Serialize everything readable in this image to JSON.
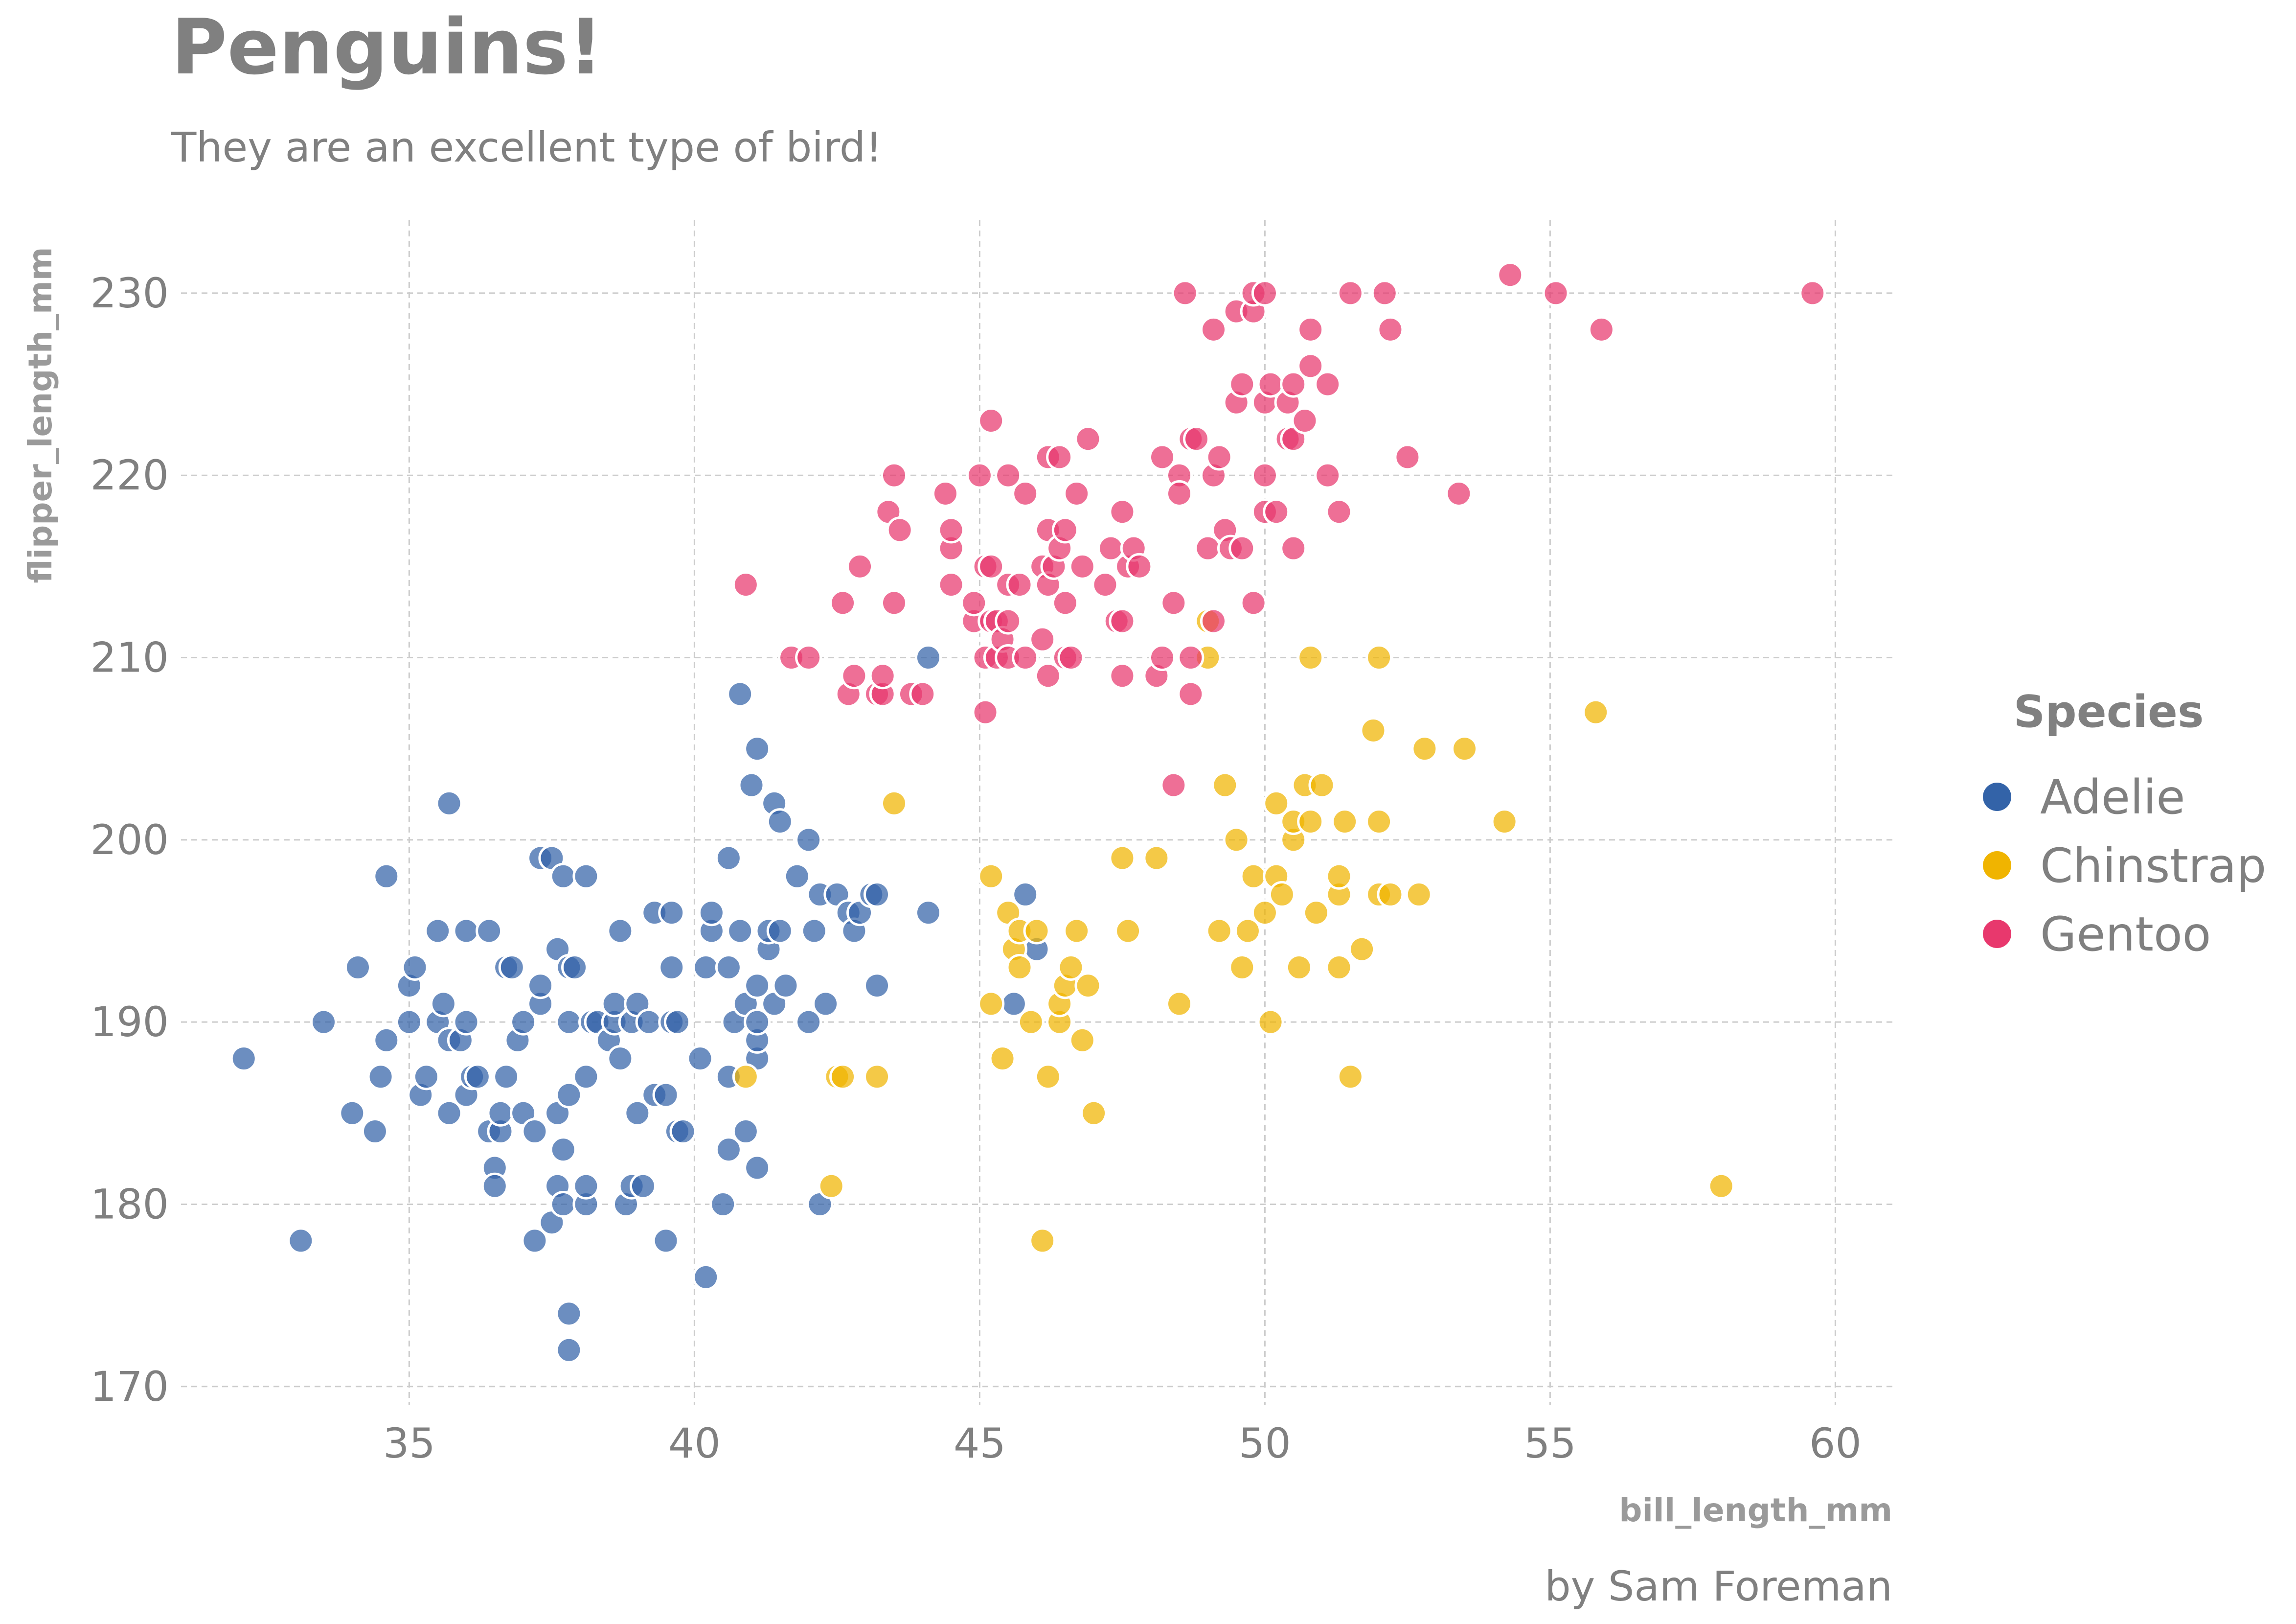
{
  "chart_data": {
    "type": "scatter",
    "title": "Penguins!",
    "subtitle": "They are an excellent type of bird!",
    "caption": "by Sam Foreman",
    "xlabel": "bill_length_mm",
    "ylabel": "flipper_length_mm",
    "xlim": [
      31,
      61
    ],
    "ylim": [
      169,
      234
    ],
    "xticks": [
      "35",
      "40",
      "45",
      "50",
      "55",
      "60"
    ],
    "yticks": [
      "170",
      "180",
      "190",
      "200",
      "210",
      "220",
      "230"
    ],
    "grid": true,
    "legend": {
      "title": "Species",
      "position": "right"
    },
    "series": [
      {
        "name": "Adelie",
        "color": "#3363a8",
        "points": [
          [
            32.1,
            188
          ],
          [
            33.1,
            178
          ],
          [
            33.5,
            190
          ],
          [
            34,
            185
          ],
          [
            34.1,
            193
          ],
          [
            34.4,
            184
          ],
          [
            34.5,
            187
          ],
          [
            34.6,
            189
          ],
          [
            34.6,
            198
          ],
          [
            35,
            190
          ],
          [
            35,
            192
          ],
          [
            35.1,
            193
          ],
          [
            35.2,
            186
          ],
          [
            35.3,
            187
          ],
          [
            35.5,
            190
          ],
          [
            35.5,
            195
          ],
          [
            35.6,
            191
          ],
          [
            35.7,
            185
          ],
          [
            35.7,
            189
          ],
          [
            35.7,
            202
          ],
          [
            35.9,
            189
          ],
          [
            36,
            186
          ],
          [
            36,
            190
          ],
          [
            36,
            195
          ],
          [
            36.1,
            187
          ],
          [
            36.2,
            187
          ],
          [
            36.4,
            184
          ],
          [
            36.4,
            195
          ],
          [
            36.5,
            182
          ],
          [
            36.5,
            181
          ],
          [
            36.6,
            184
          ],
          [
            36.6,
            185
          ],
          [
            36.7,
            187
          ],
          [
            36.7,
            193
          ],
          [
            36.8,
            193
          ],
          [
            36.9,
            189
          ],
          [
            37,
            185
          ],
          [
            37,
            190
          ],
          [
            37.2,
            178
          ],
          [
            37.2,
            184
          ],
          [
            37.3,
            191
          ],
          [
            37.3,
            192
          ],
          [
            37.3,
            199
          ],
          [
            37.5,
            179
          ],
          [
            37.5,
            199
          ],
          [
            37.6,
            181
          ],
          [
            37.6,
            185
          ],
          [
            37.6,
            194
          ],
          [
            37.7,
            183
          ],
          [
            37.7,
            180
          ],
          [
            37.7,
            198
          ],
          [
            37.8,
            174
          ],
          [
            37.8,
            172
          ],
          [
            37.8,
            186
          ],
          [
            37.8,
            190
          ],
          [
            37.8,
            193
          ],
          [
            37.9,
            193
          ],
          [
            38.1,
            180
          ],
          [
            38.1,
            181
          ],
          [
            38.1,
            187
          ],
          [
            38.1,
            198
          ],
          [
            38.2,
            190
          ],
          [
            38.3,
            190
          ],
          [
            38.5,
            189
          ],
          [
            38.6,
            190
          ],
          [
            38.6,
            191
          ],
          [
            38.7,
            188
          ],
          [
            38.7,
            195
          ],
          [
            38.8,
            180
          ],
          [
            38.9,
            181
          ],
          [
            38.9,
            190
          ],
          [
            39,
            185
          ],
          [
            39,
            191
          ],
          [
            39.1,
            181
          ],
          [
            39.2,
            190
          ],
          [
            39.3,
            186
          ],
          [
            39.3,
            196
          ],
          [
            39.5,
            178
          ],
          [
            39.5,
            186
          ],
          [
            39.6,
            190
          ],
          [
            39.6,
            193
          ],
          [
            39.6,
            196
          ],
          [
            39.7,
            184
          ],
          [
            39.7,
            190
          ],
          [
            39.8,
            184
          ],
          [
            40.1,
            188
          ],
          [
            40.2,
            176
          ],
          [
            40.2,
            193
          ],
          [
            40.3,
            195
          ],
          [
            40.3,
            196
          ],
          [
            40.5,
            180
          ],
          [
            40.6,
            183
          ],
          [
            40.6,
            187
          ],
          [
            40.6,
            193
          ],
          [
            40.6,
            199
          ],
          [
            40.7,
            190
          ],
          [
            40.8,
            195
          ],
          [
            40.9,
            184
          ],
          [
            40.9,
            191
          ],
          [
            41.1,
            182
          ],
          [
            41.1,
            188
          ],
          [
            41.1,
            189
          ],
          [
            41.1,
            190
          ],
          [
            41.1,
            192
          ],
          [
            41.1,
            205
          ],
          [
            41.3,
            194
          ],
          [
            41.3,
            195
          ],
          [
            41.4,
            191
          ],
          [
            41.4,
            202
          ],
          [
            41.5,
            195
          ],
          [
            41.5,
            201
          ],
          [
            41.6,
            192
          ],
          [
            41.8,
            198
          ],
          [
            42,
            190
          ],
          [
            42,
            200
          ],
          [
            42.1,
            195
          ],
          [
            42.2,
            180
          ],
          [
            42.2,
            197
          ],
          [
            42.3,
            191
          ],
          [
            42.5,
            197
          ],
          [
            42.7,
            196
          ],
          [
            42.8,
            195
          ],
          [
            42.9,
            196
          ],
          [
            43.1,
            197
          ],
          [
            43.2,
            192
          ],
          [
            43.2,
            197
          ],
          [
            44.1,
            196
          ],
          [
            44.1,
            210
          ],
          [
            45.6,
            191
          ],
          [
            45.8,
            197
          ],
          [
            46,
            194
          ],
          [
            40.8,
            208
          ],
          [
            41,
            203
          ]
        ]
      },
      {
        "name": "Chinstrap",
        "color": "#f0b400",
        "points": [
          [
            40.9,
            187
          ],
          [
            42.4,
            181
          ],
          [
            42.5,
            187
          ],
          [
            42.6,
            187
          ],
          [
            43.2,
            187
          ],
          [
            43.5,
            202
          ],
          [
            45.2,
            191
          ],
          [
            45.2,
            198
          ],
          [
            45.4,
            188
          ],
          [
            45.5,
            196
          ],
          [
            45.6,
            194
          ],
          [
            45.7,
            195
          ],
          [
            45.7,
            193
          ],
          [
            45.9,
            190
          ],
          [
            46,
            195
          ],
          [
            46.1,
            178
          ],
          [
            46.2,
            187
          ],
          [
            46.4,
            190
          ],
          [
            46.4,
            191
          ],
          [
            46.5,
            192
          ],
          [
            46.6,
            193
          ],
          [
            46.7,
            195
          ],
          [
            46.8,
            189
          ],
          [
            46.9,
            192
          ],
          [
            47,
            185
          ],
          [
            47.5,
            199
          ],
          [
            47.6,
            195
          ],
          [
            48.1,
            199
          ],
          [
            48.5,
            191
          ],
          [
            49,
            210
          ],
          [
            49,
            212
          ],
          [
            49.2,
            195
          ],
          [
            49.3,
            203
          ],
          [
            49.5,
            200
          ],
          [
            49.6,
            193
          ],
          [
            49.7,
            195
          ],
          [
            49.8,
            198
          ],
          [
            50,
            196
          ],
          [
            50.1,
            190
          ],
          [
            50.2,
            198
          ],
          [
            50.2,
            202
          ],
          [
            50.3,
            197
          ],
          [
            50.5,
            200
          ],
          [
            50.5,
            201
          ],
          [
            50.6,
            193
          ],
          [
            50.7,
            203
          ],
          [
            50.8,
            210
          ],
          [
            50.8,
            201
          ],
          [
            50.9,
            196
          ],
          [
            51,
            203
          ],
          [
            51.3,
            193
          ],
          [
            51.3,
            197
          ],
          [
            51.3,
            198
          ],
          [
            51.4,
            201
          ],
          [
            51.5,
            187
          ],
          [
            51.7,
            194
          ],
          [
            51.9,
            206
          ],
          [
            52,
            197
          ],
          [
            52,
            201
          ],
          [
            52,
            210
          ],
          [
            52.2,
            197
          ],
          [
            52.7,
            197
          ],
          [
            52.8,
            205
          ],
          [
            53.5,
            205
          ],
          [
            54.2,
            201
          ],
          [
            55.8,
            207
          ],
          [
            58,
            181
          ]
        ]
      },
      {
        "name": "Gentoo",
        "color": "#e8386d",
        "points": [
          [
            40.9,
            214
          ],
          [
            41.7,
            210
          ],
          [
            42,
            210
          ],
          [
            42.6,
            213
          ],
          [
            42.7,
            208
          ],
          [
            42.8,
            209
          ],
          [
            42.9,
            215
          ],
          [
            43.2,
            208
          ],
          [
            43.3,
            208
          ],
          [
            43.3,
            209
          ],
          [
            43.4,
            218
          ],
          [
            43.5,
            213
          ],
          [
            43.5,
            220
          ],
          [
            43.6,
            217
          ],
          [
            43.8,
            208
          ],
          [
            44,
            208
          ],
          [
            44.4,
            219
          ],
          [
            44.5,
            214
          ],
          [
            44.5,
            216
          ],
          [
            44.5,
            217
          ],
          [
            44.9,
            212
          ],
          [
            44.9,
            213
          ],
          [
            45,
            220
          ],
          [
            45.1,
            207
          ],
          [
            45.1,
            210
          ],
          [
            45.1,
            215
          ],
          [
            45.2,
            212
          ],
          [
            45.2,
            215
          ],
          [
            45.2,
            223
          ],
          [
            45.3,
            210
          ],
          [
            45.3,
            212
          ],
          [
            45.4,
            211
          ],
          [
            45.5,
            210
          ],
          [
            45.5,
            212
          ],
          [
            45.5,
            214
          ],
          [
            45.5,
            220
          ],
          [
            45.7,
            214
          ],
          [
            45.8,
            210
          ],
          [
            45.8,
            219
          ],
          [
            46.1,
            211
          ],
          [
            46.1,
            215
          ],
          [
            46.2,
            209
          ],
          [
            46.2,
            214
          ],
          [
            46.2,
            217
          ],
          [
            46.2,
            221
          ],
          [
            46.3,
            215
          ],
          [
            46.4,
            216
          ],
          [
            46.4,
            221
          ],
          [
            46.5,
            210
          ],
          [
            46.5,
            213
          ],
          [
            46.5,
            217
          ],
          [
            46.6,
            210
          ],
          [
            46.7,
            219
          ],
          [
            46.8,
            215
          ],
          [
            46.9,
            222
          ],
          [
            47.2,
            214
          ],
          [
            47.3,
            216
          ],
          [
            47.4,
            212
          ],
          [
            47.5,
            209
          ],
          [
            47.5,
            212
          ],
          [
            47.5,
            218
          ],
          [
            47.6,
            215
          ],
          [
            47.7,
            216
          ],
          [
            47.8,
            215
          ],
          [
            48.1,
            209
          ],
          [
            48.2,
            210
          ],
          [
            48.2,
            221
          ],
          [
            48.4,
            213
          ],
          [
            48.4,
            203
          ],
          [
            48.5,
            220
          ],
          [
            48.5,
            219
          ],
          [
            48.6,
            230
          ],
          [
            48.7,
            208
          ],
          [
            48.7,
            210
          ],
          [
            48.7,
            222
          ],
          [
            48.8,
            222
          ],
          [
            49,
            216
          ],
          [
            49.1,
            212
          ],
          [
            49.1,
            220
          ],
          [
            49.1,
            228
          ],
          [
            49.2,
            221
          ],
          [
            49.3,
            217
          ],
          [
            49.4,
            216
          ],
          [
            49.5,
            224
          ],
          [
            49.5,
            229
          ],
          [
            49.6,
            216
          ],
          [
            49.6,
            225
          ],
          [
            49.8,
            213
          ],
          [
            49.8,
            229
          ],
          [
            49.8,
            230
          ],
          [
            50,
            218
          ],
          [
            50,
            220
          ],
          [
            50,
            224
          ],
          [
            50,
            230
          ],
          [
            50.1,
            225
          ],
          [
            50.2,
            218
          ],
          [
            50.4,
            222
          ],
          [
            50.4,
            224
          ],
          [
            50.5,
            216
          ],
          [
            50.5,
            222
          ],
          [
            50.5,
            225
          ],
          [
            50.7,
            223
          ],
          [
            50.8,
            226
          ],
          [
            50.8,
            228
          ],
          [
            51.1,
            220
          ],
          [
            51.1,
            225
          ],
          [
            51.3,
            218
          ],
          [
            51.5,
            230
          ],
          [
            52.1,
            230
          ],
          [
            52.2,
            228
          ],
          [
            52.5,
            221
          ],
          [
            53.4,
            219
          ],
          [
            54.3,
            231
          ],
          [
            55.1,
            230
          ],
          [
            55.9,
            228
          ],
          [
            59.6,
            230
          ]
        ]
      }
    ]
  }
}
